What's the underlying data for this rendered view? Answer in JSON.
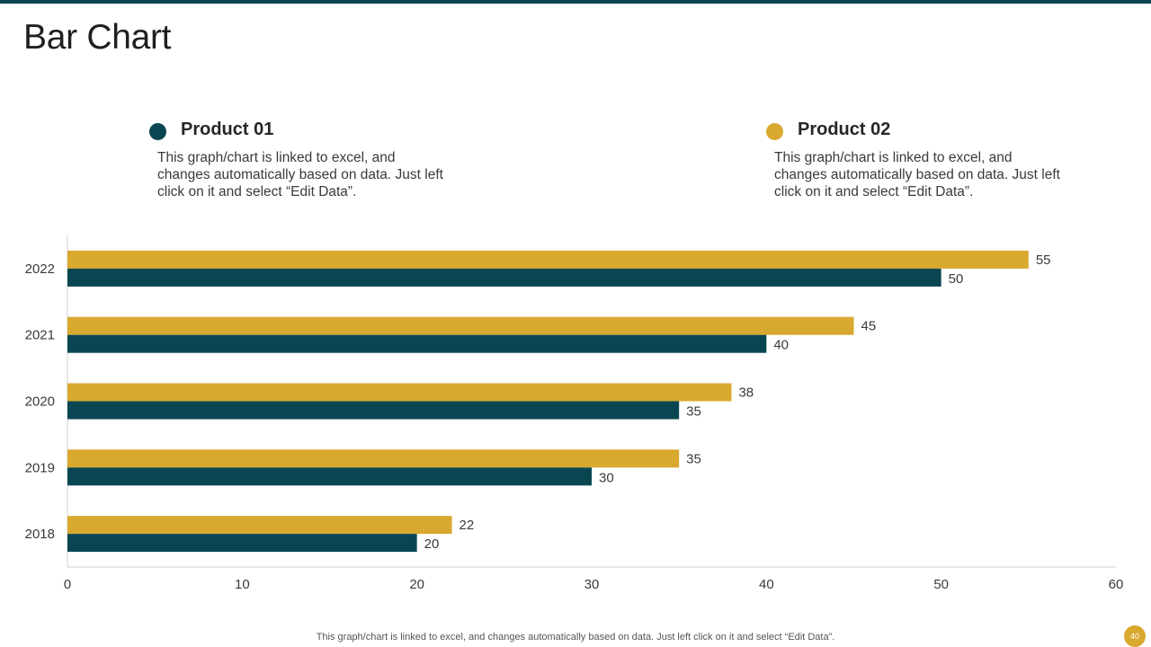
{
  "slide": {
    "title": "Bar Chart",
    "footer": "This graph/chart is linked to excel,  and changes automatically based on data. Just left click on it and select “Edit Data”.",
    "page_number": "40"
  },
  "legend": [
    {
      "name": "Product 01",
      "color": "#0a4652",
      "description": "This graph/chart  is linked to excel, and changes automatically based on data. Just left click on it and select “Edit Data”."
    },
    {
      "name": "Product 02",
      "color": "#d9a82e",
      "description": "This graph/chart  is linked to excel, and changes automatically based on data. Just left click on it and select “Edit Data”."
    }
  ],
  "chart_data": {
    "type": "bar",
    "orientation": "horizontal",
    "title": "",
    "xlabel": "",
    "ylabel": "",
    "categories": [
      "2018",
      "2019",
      "2020",
      "2021",
      "2022"
    ],
    "series": [
      {
        "name": "Product 01",
        "color": "#0a4652",
        "values": [
          20,
          30,
          35,
          40,
          50
        ]
      },
      {
        "name": "Product 02",
        "color": "#d9a82e",
        "values": [
          22,
          35,
          38,
          45,
          55
        ]
      }
    ],
    "xlim": [
      0,
      60
    ],
    "xticks": [
      0,
      10,
      20,
      30,
      40,
      50,
      60
    ],
    "grid": false,
    "data_labels": true
  }
}
